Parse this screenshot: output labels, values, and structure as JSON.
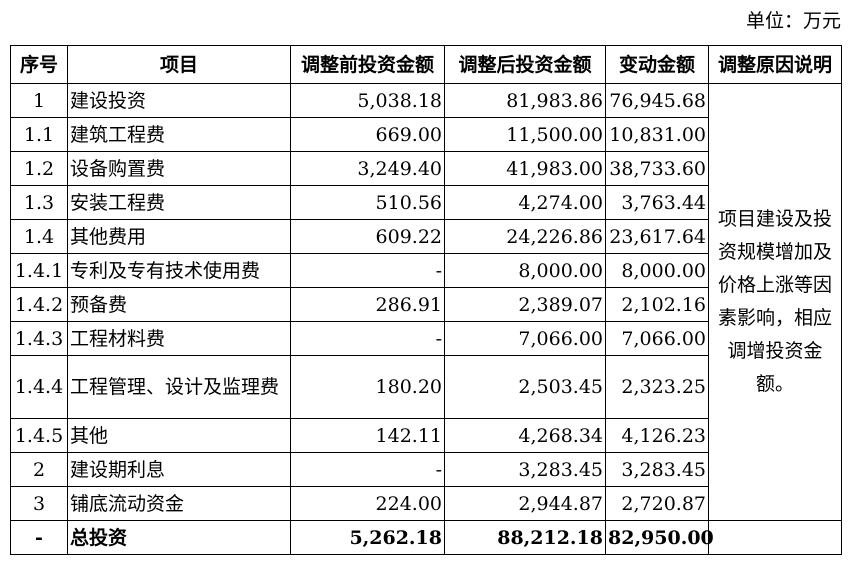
{
  "unit_label": "单位：万元",
  "headers": [
    "序号",
    "项目",
    "调整前投资金额",
    "调整后投资金额",
    "变动金额",
    "调整原因说明"
  ],
  "rows": [
    {
      "no": "1",
      "item": "建设投资",
      "before": "5,038.18",
      "after": "81,983.86",
      "change": "76,945.68"
    },
    {
      "no": "1.1",
      "item": "建筑工程费",
      "before": "669.00",
      "after": "11,500.00",
      "change": "10,831.00"
    },
    {
      "no": "1.2",
      "item": "设备购置费",
      "before": "3,249.40",
      "after": "41,983.00",
      "change": "38,733.60"
    },
    {
      "no": "1.3",
      "item": "安装工程费",
      "before": "510.56",
      "after": "4,274.00",
      "change": "3,763.44"
    },
    {
      "no": "1.4",
      "item": "其他费用",
      "before": "609.22",
      "after": "24,226.86",
      "change": "23,617.64"
    },
    {
      "no": "1.4.1",
      "item": "专利及专有技术使用费",
      "before": "-",
      "after": "8,000.00",
      "change": "8,000.00"
    },
    {
      "no": "1.4.2",
      "item": "预备费",
      "before": "286.91",
      "after": "2,389.07",
      "change": "2,102.16"
    },
    {
      "no": "1.4.3",
      "item": "工程材料费",
      "before": "-",
      "after": "7,066.00",
      "change": "7,066.00"
    },
    {
      "no": "1.4.4",
      "item": "工程管理、设计及监理费",
      "before": "180.20",
      "after": "2,503.45",
      "change": "2,323.25"
    },
    {
      "no": "1.4.5",
      "item": "其他",
      "before": "142.11",
      "after": "4,268.34",
      "change": "4,126.23"
    },
    {
      "no": "2",
      "item": "建设期利息",
      "before": "-",
      "after": "3,283.45",
      "change": "3,283.45"
    },
    {
      "no": "3",
      "item": "铺底流动资金",
      "before": "224.00",
      "after": "2,944.87",
      "change": "2,720.87"
    },
    {
      "no": "-",
      "item": "总投资",
      "before": "5,262.18",
      "after": "88,212.18",
      "change": "82,950.00"
    }
  ],
  "reason": "项目建设及投资规模增加及价格上涨等因素影响，相应调增投资金额。"
}
